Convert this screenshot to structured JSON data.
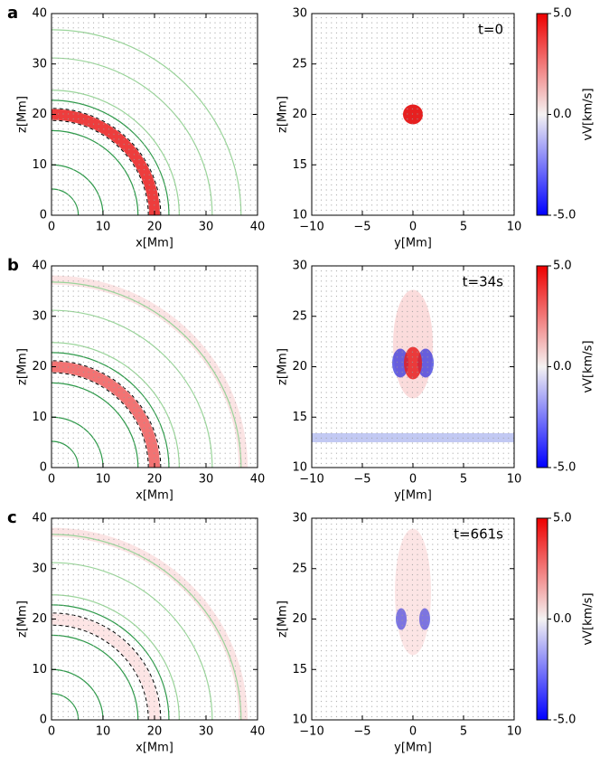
{
  "chart_data": [
    {
      "type": "field",
      "label": "a",
      "xlabel": "x[Mm]",
      "ylabel": "z[Mm]",
      "xlim": [
        0,
        40
      ],
      "ylim": [
        0,
        40
      ],
      "xticks": [
        0,
        10,
        20,
        30,
        40
      ],
      "yticks": [
        0,
        10,
        20,
        30,
        40
      ]
    },
    {
      "type": "field",
      "annotation": "t=0",
      "xlabel": "y[Mm]",
      "ylabel": "z[Mm]",
      "xlim": [
        -10,
        10
      ],
      "ylim": [
        10,
        30
      ],
      "xticks": [
        {
          "value": -10,
          "label": "−10"
        },
        {
          "value": -5,
          "label": "−5"
        },
        0,
        5,
        10
      ],
      "yticks": [
        10,
        15,
        20,
        25,
        30
      ],
      "colorbar": {
        "label": "vV[km/s]",
        "lim": [
          -5,
          5
        ],
        "ticks": [
          {
            "value": 5,
            "label": "5.0"
          },
          {
            "value": 0,
            "label": "0.0"
          },
          {
            "value": -5,
            "label": "-5.0"
          }
        ]
      }
    },
    {
      "type": "field",
      "label": "b",
      "xlabel": "x[Mm]",
      "ylabel": "z[Mm]",
      "xlim": [
        0,
        40
      ],
      "ylim": [
        0,
        40
      ],
      "xticks": [
        0,
        10,
        20,
        30,
        40
      ],
      "yticks": [
        0,
        10,
        20,
        30,
        40
      ]
    },
    {
      "type": "field",
      "annotation": "t=34s",
      "xlabel": "y[Mm]",
      "ylabel": "z[Mm]",
      "xlim": [
        -10,
        10
      ],
      "ylim": [
        10,
        30
      ],
      "xticks": [
        {
          "value": -10,
          "label": "−10"
        },
        {
          "value": -5,
          "label": "−5"
        },
        0,
        5,
        10
      ],
      "yticks": [
        10,
        15,
        20,
        25,
        30
      ],
      "colorbar": {
        "label": "vV[km/s]",
        "lim": [
          -5,
          5
        ],
        "ticks": [
          {
            "value": 5,
            "label": "5.0"
          },
          {
            "value": 0,
            "label": "0.0"
          },
          {
            "value": -5,
            "label": "-5.0"
          }
        ]
      }
    },
    {
      "type": "field",
      "label": "c",
      "xlabel": "x[Mm]",
      "ylabel": "z[Mm]",
      "xlim": [
        0,
        40
      ],
      "ylim": [
        0,
        40
      ],
      "xticks": [
        0,
        10,
        20,
        30,
        40
      ],
      "yticks": [
        0,
        10,
        20,
        30,
        40
      ]
    },
    {
      "type": "field",
      "annotation": "t=661s",
      "xlabel": "y[Mm]",
      "ylabel": "z[Mm]",
      "xlim": [
        -10,
        10
      ],
      "ylim": [
        10,
        30
      ],
      "xticks": [
        {
          "value": -10,
          "label": "−10"
        },
        {
          "value": -5,
          "label": "−5"
        },
        0,
        5,
        10
      ],
      "yticks": [
        10,
        15,
        20,
        25,
        30
      ],
      "colorbar": {
        "label": "vV[km/s]",
        "lim": [
          -5,
          5
        ],
        "ticks": [
          {
            "value": 5,
            "label": "5.0"
          },
          {
            "value": 0,
            "label": "0.0"
          },
          {
            "value": -5,
            "label": "-5.0"
          }
        ]
      }
    }
  ]
}
